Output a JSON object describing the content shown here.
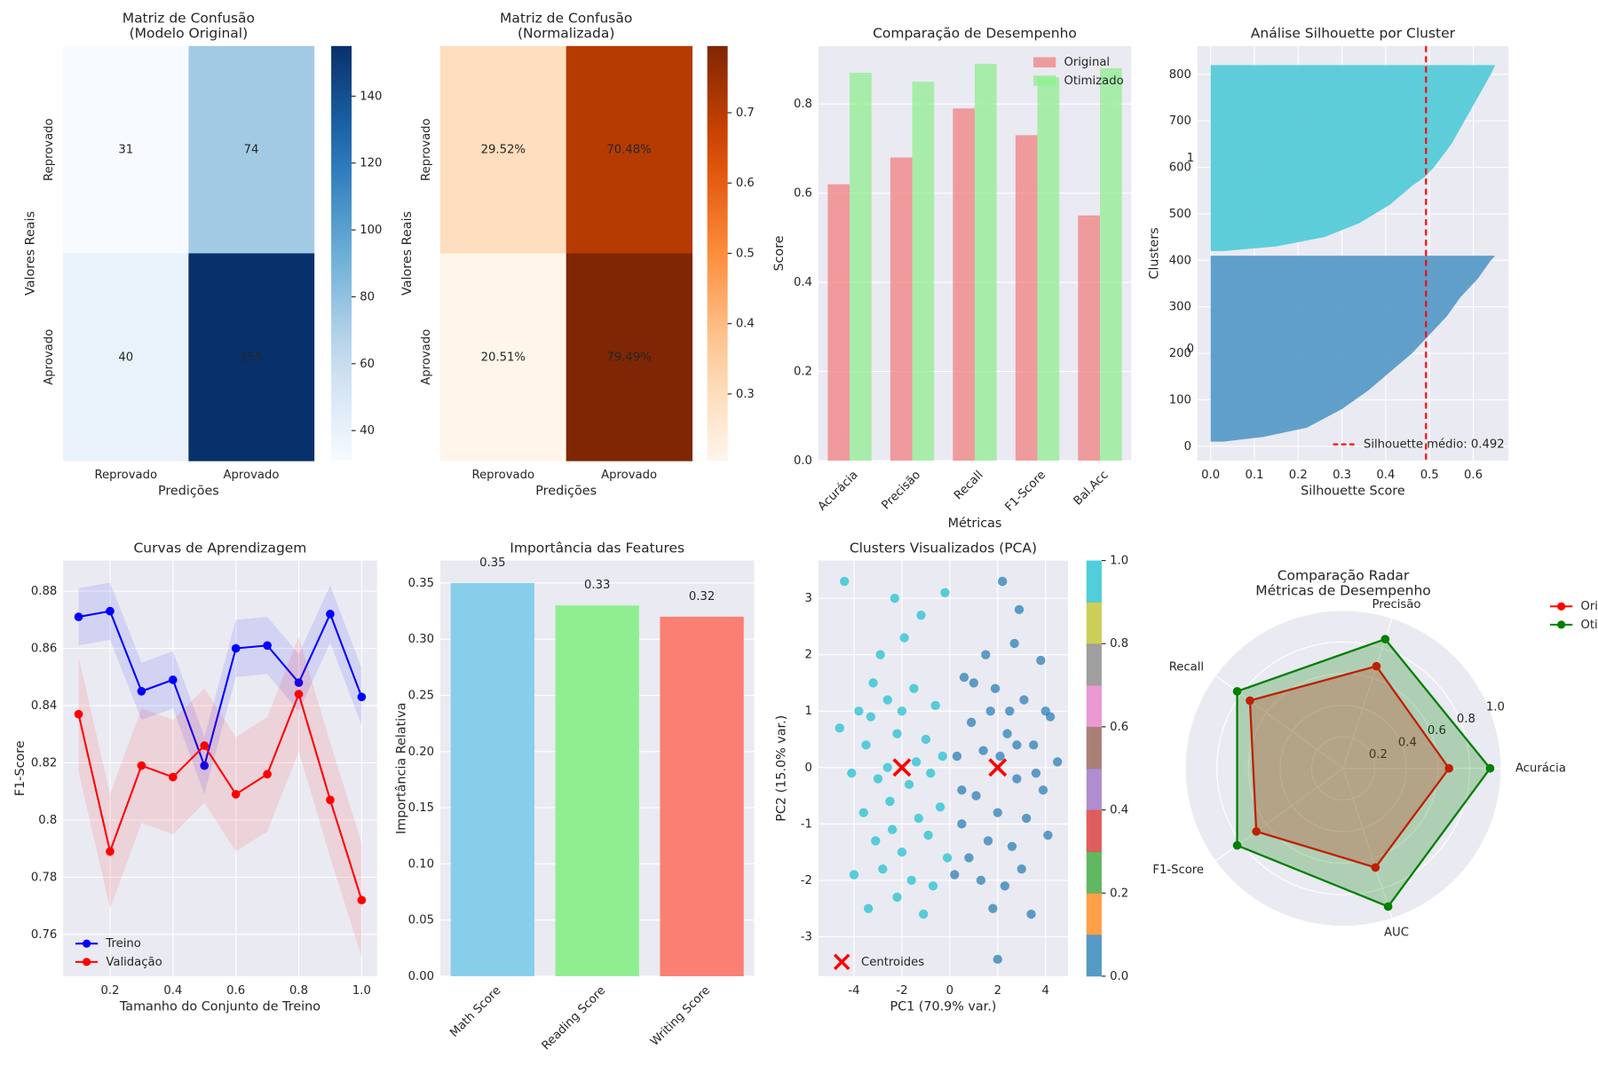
{
  "chart_data": [
    {
      "type": "heatmap",
      "title": "Matriz de Confusão",
      "subtitle": "(Modelo Original)",
      "x_categories": [
        "Reprovado",
        "Aprovado"
      ],
      "y_categories": [
        "Reprovado",
        "Aprovado"
      ],
      "values": [
        [
          31,
          74
        ],
        [
          40,
          155
        ]
      ],
      "xlabel": "Predições",
      "ylabel": "Valores Reais",
      "colormap": "Blues",
      "clim": [
        31,
        155
      ],
      "cticks": [
        40,
        60,
        80,
        100,
        120,
        140
      ]
    },
    {
      "type": "heatmap",
      "title": "Matriz de Confusão",
      "subtitle": "(Normalizada)",
      "x_categories": [
        "Reprovado",
        "Aprovado"
      ],
      "y_categories": [
        "Reprovado",
        "Aprovado"
      ],
      "values": [
        [
          0.2952,
          0.7048
        ],
        [
          0.2051,
          0.7949
        ]
      ],
      "value_labels": [
        [
          "29.52%",
          "70.48%"
        ],
        [
          "20.51%",
          "79.49%"
        ]
      ],
      "xlabel": "Predições",
      "ylabel": "Valores Reais",
      "colormap": "Oranges",
      "clim": [
        0.2051,
        0.7949
      ],
      "cticks": [
        0.3,
        0.4,
        0.5,
        0.6,
        0.7
      ]
    },
    {
      "type": "bar",
      "title": "Comparação de Desempenho",
      "xlabel": "Métricas",
      "ylabel": "Score",
      "categories": [
        "Acurácia",
        "Precisão",
        "Recall",
        "F1-Score",
        "Bal.Acc"
      ],
      "series": [
        {
          "name": "Original",
          "color": "#f08080",
          "values": [
            0.62,
            0.68,
            0.79,
            0.73,
            0.55
          ]
        },
        {
          "name": "Otimizado",
          "color": "#90ee90",
          "values": [
            0.87,
            0.85,
            0.89,
            0.86,
            0.88
          ]
        }
      ],
      "ylim": [
        0,
        0.93
      ],
      "yticks": [
        {
          "value": 0,
          "label": "0.0"
        },
        0.2,
        0.4,
        0.6,
        0.8
      ],
      "grid": true,
      "legend": "upper right"
    },
    {
      "type": "silhouette",
      "title": "Análise Silhouette por Cluster",
      "xlabel": "Silhouette Score",
      "ylabel": "Clusters",
      "clusters": [
        {
          "label": "0",
          "color": "#5a9bc8",
          "y": [
            10,
            20,
            40,
            80,
            120,
            160,
            200,
            240,
            280,
            320,
            360,
            400,
            410
          ],
          "values": [
            0.03,
            0.12,
            0.22,
            0.3,
            0.36,
            0.41,
            0.46,
            0.5,
            0.54,
            0.57,
            0.61,
            0.64,
            0.65
          ]
        },
        {
          "label": "1",
          "color": "#56cbd8",
          "y": [
            420,
            430,
            450,
            480,
            520,
            560,
            580,
            600,
            650,
            700,
            750,
            800,
            820
          ],
          "values": [
            0.03,
            0.15,
            0.26,
            0.34,
            0.41,
            0.46,
            0.49,
            0.51,
            0.55,
            0.58,
            0.61,
            0.64,
            0.65
          ]
        }
      ],
      "xlim": [
        -0.03,
        0.68
      ],
      "ylim": [
        -31,
        861
      ],
      "xticks": [
        {
          "value": 0,
          "label": "0.0"
        },
        0.1,
        0.2,
        0.3,
        0.4,
        0.5,
        0.6
      ],
      "yticks": [
        0,
        100,
        200,
        300,
        400,
        500,
        600,
        700,
        800
      ],
      "average": 0.492,
      "average_label": "Silhouette médio: 0.492",
      "average_color": "#ff0000",
      "grid": true,
      "legend": "lower right"
    },
    {
      "type": "line",
      "title": "Curvas de Aprendizagem",
      "xlabel": "Tamanho do Conjunto de Treino",
      "ylabel": "F1-Score",
      "x": [
        0.1,
        0.2,
        0.3,
        0.4,
        0.5,
        0.6,
        0.7,
        0.8,
        0.9,
        1.0
      ],
      "series": [
        {
          "name": "Treino",
          "color": "#0000ff",
          "values": [
            0.871,
            0.873,
            0.845,
            0.849,
            0.819,
            0.86,
            0.861,
            0.848,
            0.872,
            0.843
          ],
          "std": [
            0.01,
            0.01,
            0.01,
            0.01,
            0.01,
            0.01,
            0.01,
            0.01,
            0.01,
            0.01
          ]
        },
        {
          "name": "Validação",
          "color": "#ff0000",
          "values": [
            0.837,
            0.789,
            0.819,
            0.815,
            0.826,
            0.809,
            0.816,
            0.844,
            0.807,
            0.772
          ],
          "std": [
            0.02,
            0.02,
            0.02,
            0.02,
            0.02,
            0.02,
            0.02,
            0.02,
            0.02,
            0.02
          ]
        }
      ],
      "xlim": [
        0.051,
        1.049
      ],
      "ylim": [
        0.7454,
        0.8907
      ],
      "xticks": [
        0.2,
        0.4,
        0.6,
        0.8,
        {
          "value": 1,
          "label": "1.0"
        }
      ],
      "yticks": [
        0.76,
        0.78,
        0.8,
        0.82,
        0.84,
        0.86,
        0.88
      ],
      "grid": true,
      "legend": "lower left"
    },
    {
      "type": "bar",
      "title": "Importância das Features",
      "ylabel": "Importância Relativa",
      "categories": [
        "Math Score",
        "Reading Score",
        "Writing Score"
      ],
      "values": [
        0.35,
        0.33,
        0.32
      ],
      "colors": [
        "#87ceeb",
        "#90ee90",
        "#fa8072"
      ],
      "ylim": [
        0,
        0.37
      ],
      "yticks": [
        {
          "value": 0,
          "label": "0.00"
        },
        0.05,
        {
          "value": 0.1,
          "label": "0.10"
        },
        0.15,
        {
          "value": 0.2,
          "label": "0.20"
        },
        0.25,
        {
          "value": 0.3,
          "label": "0.30"
        },
        0.35
      ],
      "grid": true,
      "show_values": true
    },
    {
      "type": "scatter",
      "title": "Clusters Visualizados (PCA)",
      "xlabel": "PC1 (70.9% var.)",
      "ylabel": "PC2 (15.0% var.)",
      "series": [
        {
          "color": "#17becf",
          "x": [
            -4.4,
            -2.3,
            -0.2,
            -1.2,
            -2.9,
            -1.9,
            -3.2,
            -4.6,
            -3.8,
            -2.6,
            -1.5,
            -0.6,
            -3.5,
            -2.2,
            -1.0,
            -0.3,
            -4.1,
            -3.0,
            -1.7,
            -0.8,
            -3.6,
            -2.5,
            -1.3,
            -0.4,
            -3.1,
            -2.0,
            -0.9,
            -4.0,
            -2.8,
            -1.6,
            -3.4,
            -2.2,
            -1.1,
            -0.1,
            -2.6,
            -1.4,
            -2.0,
            -3.3,
            -0.7,
            -2.4
          ],
          "y": [
            3.3,
            3.0,
            3.1,
            2.7,
            2.0,
            2.3,
            1.5,
            0.7,
            1.0,
            1.2,
            1.4,
            1.1,
            0.4,
            0.6,
            0.5,
            0.2,
            -0.1,
            -0.2,
            -0.3,
            -0.1,
            -0.8,
            -0.6,
            -0.9,
            -0.7,
            -1.3,
            -1.5,
            -1.2,
            -1.9,
            -1.8,
            -2.0,
            -2.5,
            -2.3,
            -2.6,
            -1.6,
            0.0,
            0.1,
            1.0,
            0.9,
            -2.1,
            -1.1
          ]
        },
        {
          "color": "#1f77b4",
          "x": [
            2.2,
            2.9,
            1.5,
            2.7,
            3.8,
            0.6,
            1.9,
            3.1,
            4.2,
            0.9,
            2.4,
            3.5,
            4.5,
            0.3,
            1.4,
            2.8,
            3.9,
            1.1,
            2.0,
            3.2,
            0.5,
            1.6,
            2.6,
            4.1,
            0.2,
            1.3,
            2.3,
            3.4,
            1.8,
            2.0,
            0.8,
            3.0,
            2.5,
            1.7,
            3.6,
            2.1,
            1.0,
            4.0,
            0.5,
            2.8
          ],
          "y": [
            3.3,
            2.8,
            2.0,
            2.2,
            1.9,
            1.6,
            1.4,
            1.2,
            0.9,
            0.8,
            0.6,
            0.4,
            0.1,
            0.2,
            0.3,
            -0.2,
            -0.4,
            -0.5,
            -0.8,
            -0.9,
            -1.0,
            -1.3,
            -1.4,
            -1.2,
            -1.9,
            -2.0,
            -2.1,
            -2.6,
            -2.5,
            -3.4,
            -1.6,
            -1.8,
            1.0,
            1.0,
            -0.1,
            0.2,
            1.5,
            1.0,
            -0.4,
            0.4
          ]
        }
      ],
      "centroids": {
        "name": "Centroides",
        "color": "#ff0000",
        "x": [
          -2,
          2
        ],
        "y": [
          0,
          0
        ]
      },
      "xlim": [
        -5.49,
        4.94
      ],
      "ylim": [
        -3.7,
        3.67
      ],
      "xticks": [
        -4,
        -2,
        0,
        2,
        4
      ],
      "yticks": [
        -3,
        -2,
        -1,
        0,
        1,
        2,
        3
      ],
      "grid": true,
      "legend": "lower left",
      "colorbar_colors": [
        "#1f77b4",
        "#ff7f0e",
        "#2ca02c",
        "#d62728",
        "#9467bd",
        "#8c564b",
        "#e377c2",
        "#7f7f7f",
        "#bcbd22",
        "#17becf"
      ],
      "clim": [
        0,
        1
      ],
      "cticks": [
        {
          "value": 0,
          "label": "0.0"
        },
        0.2,
        0.4,
        0.6,
        0.8,
        {
          "value": 1,
          "label": "1.0"
        }
      ]
    },
    {
      "type": "radar",
      "title": "Comparação Radar",
      "subtitle": "Métricas de Desempenho",
      "categories": [
        "Acurácia",
        "Precisão",
        "Recall",
        "F1-Score",
        "AUC"
      ],
      "series": [
        {
          "name": "Original",
          "color": "#ff0000",
          "values": [
            0.67,
            0.68,
            0.73,
            0.68,
            0.66
          ]
        },
        {
          "name": "Otimizado",
          "color": "#008000",
          "values": [
            0.93,
            0.86,
            0.83,
            0.83,
            0.92
          ]
        }
      ],
      "rlim": [
        0,
        1
      ],
      "rticks": [
        0.2,
        0.4,
        0.6,
        0.8,
        {
          "value": 1,
          "label": "1.0"
        }
      ],
      "legend": "upper right"
    }
  ]
}
